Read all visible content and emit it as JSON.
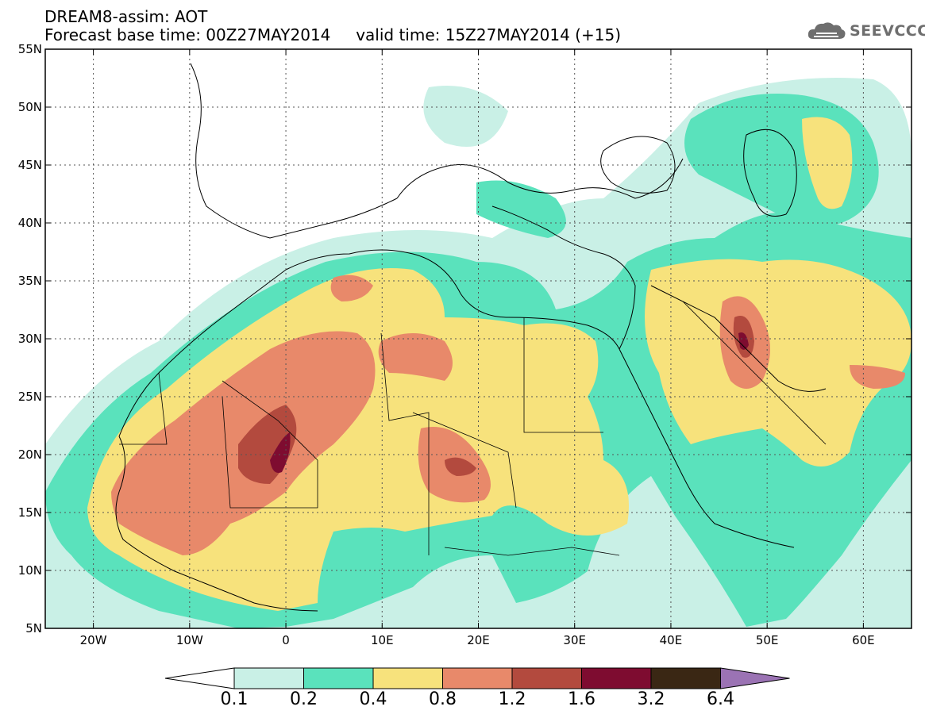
{
  "header": {
    "title_line1": "DREAM8-assim: AOT",
    "title_line2": "Forecast base time: 00Z27MAY2014     valid time: 15Z27MAY2014 (+15)"
  },
  "logo": {
    "text": "SEEVCCC",
    "icon": "cloud-icon",
    "color": "#6e6e6e"
  },
  "map": {
    "lon_range": [
      -25,
      65
    ],
    "lat_range": [
      5,
      55
    ],
    "lat_ticks": [
      "55N",
      "50N",
      "45N",
      "40N",
      "35N",
      "30N",
      "25N",
      "20N",
      "15N",
      "10N",
      "5N"
    ],
    "lon_ticks": [
      "20W",
      "10W",
      "0",
      "10E",
      "20E",
      "30E",
      "40E",
      "50E",
      "60E"
    ],
    "gridlines": "dotted"
  },
  "colorbar": {
    "labels": [
      "0.1",
      "0.2",
      "0.4",
      "0.8",
      "1.2",
      "1.6",
      "3.2",
      "6.4"
    ],
    "colors": [
      "#ffffff",
      "#c9f0e6",
      "#5ae2bc",
      "#f7e27c",
      "#e8896a",
      "#b34a3e",
      "#7e0c30",
      "#3a2714",
      "#9b73b4"
    ]
  }
}
